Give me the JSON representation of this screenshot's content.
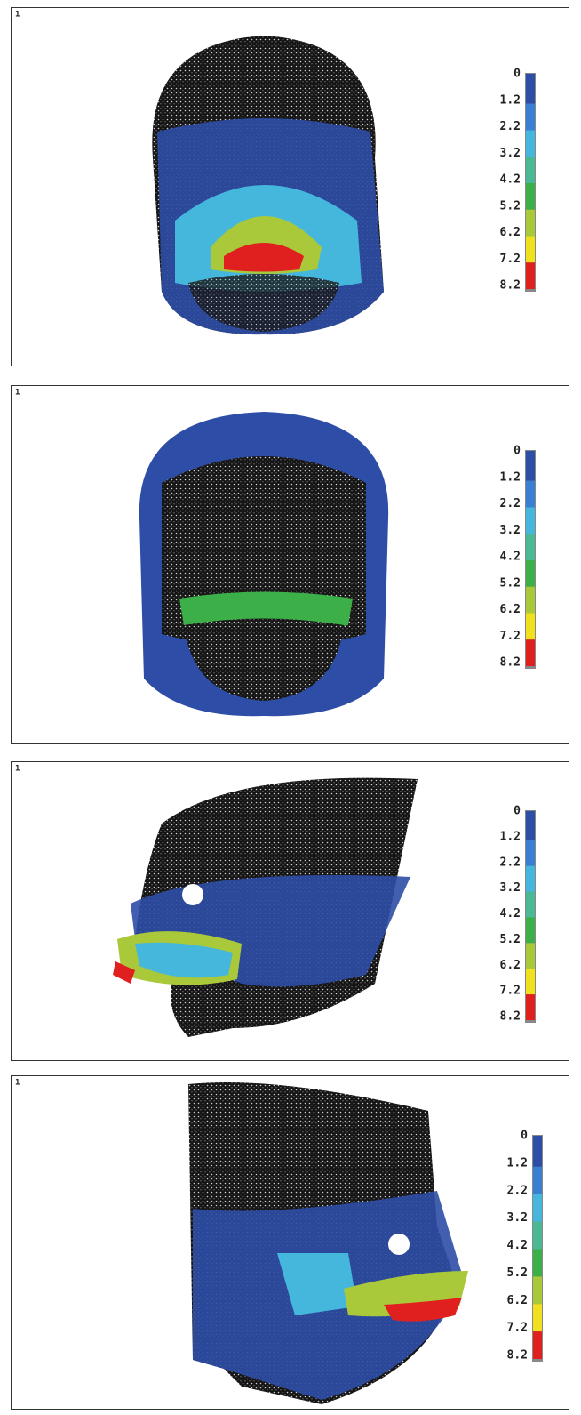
{
  "panels": [
    {
      "label": "1",
      "legend": [
        "0",
        "1.2",
        "2.2",
        "3.2",
        "4.2",
        "5.2",
        "6.2",
        "7.2",
        "8.2"
      ]
    },
    {
      "label": "1",
      "legend": [
        "0",
        "1.2",
        "2.2",
        "3.2",
        "4.2",
        "5.2",
        "6.2",
        "7.2",
        "8.2"
      ]
    },
    {
      "label": "1",
      "legend": [
        "0",
        "1.2",
        "2.2",
        "3.2",
        "4.2",
        "5.2",
        "6.2",
        "7.2",
        "8.2"
      ]
    },
    {
      "label": "1",
      "legend": [
        "0",
        "1.2",
        "2.2",
        "3.2",
        "4.2",
        "5.2",
        "6.2",
        "7.2",
        "8.2"
      ]
    }
  ],
  "legend_colors": [
    "#2d4da6",
    "#3a80d2",
    "#46b7dc",
    "#4cb794",
    "#3daf48",
    "#a9c83a",
    "#f0e01e",
    "#e0201e"
  ]
}
